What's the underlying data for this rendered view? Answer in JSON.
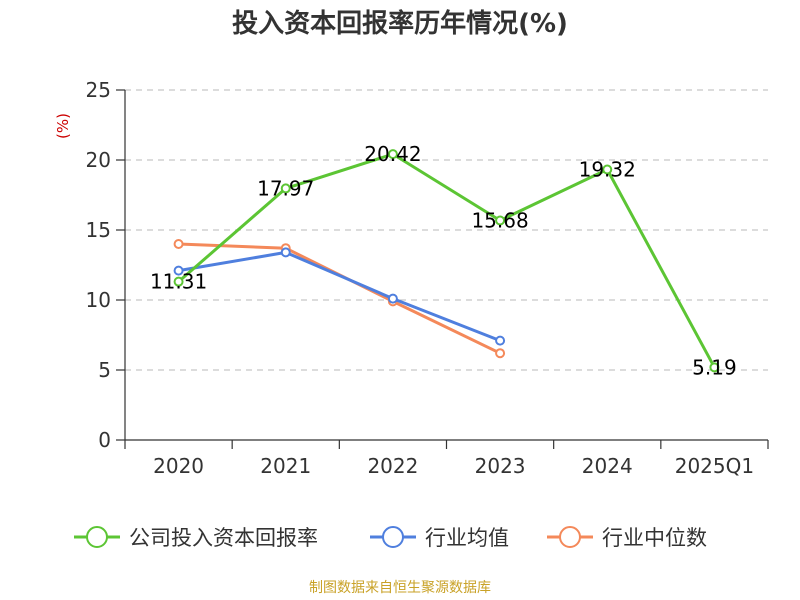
{
  "title": "投入资本回报率历年情况(%)",
  "source": "制图数据来自恒生聚源数据库",
  "chart_data": {
    "type": "line",
    "title": "投入资本回报率历年情况(%)",
    "ylabel": "(%)",
    "xlabel": "",
    "categories": [
      "2020",
      "2021",
      "2022",
      "2023",
      "2024",
      "2025Q1"
    ],
    "ylim": [
      0,
      25
    ],
    "yticks": [
      0,
      5,
      10,
      15,
      20,
      25
    ],
    "grid": true,
    "legend_position": "bottom",
    "series": [
      {
        "name": "公司投入资本回报率",
        "color": "#5cc534",
        "values": [
          11.31,
          17.97,
          20.42,
          15.68,
          19.32,
          5.19
        ],
        "labels": [
          "11.31",
          "17.97",
          "20.42",
          "15.68",
          "19.32",
          "5.19"
        ]
      },
      {
        "name": "行业均值",
        "color": "#4f7fde",
        "values": [
          12.1,
          13.4,
          10.1,
          7.1,
          null,
          null
        ]
      },
      {
        "name": "行业中位数",
        "color": "#f4895a",
        "values": [
          14.0,
          13.7,
          9.9,
          6.2,
          null,
          null
        ]
      }
    ]
  }
}
